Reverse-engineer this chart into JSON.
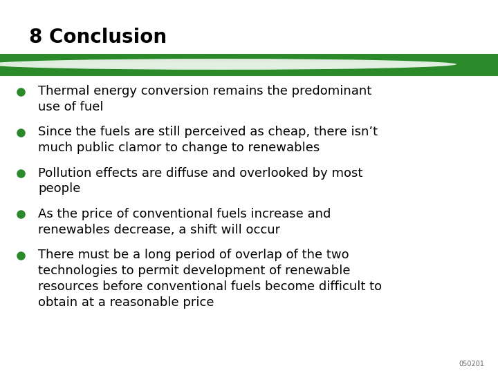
{
  "title": "8 Conclusion",
  "title_fontsize": 20,
  "title_color": "#000000",
  "background_color": "#ffffff",
  "banner_color_dark": "#2a8a2a",
  "bullet_color": "#2a8a2a",
  "text_color": "#000000",
  "bullet_fontsize": 13.0,
  "watermark": "050201",
  "bullets": [
    "Thermal energy conversion remains the predominant\nuse of fuel",
    "Since the fuels are still perceived as cheap, there isn’t\nmuch public clamor to change to renewables",
    "Pollution effects are diffuse and overlooked by most\npeople",
    "As the price of conventional fuels increase and\nrenewables decrease, a shift will occur",
    "There must be a long period of overlap of the two\ntechnologies to permit development of renewable\nresources before conventional fuels become difficult to\nobtain at a reasonable price"
  ]
}
